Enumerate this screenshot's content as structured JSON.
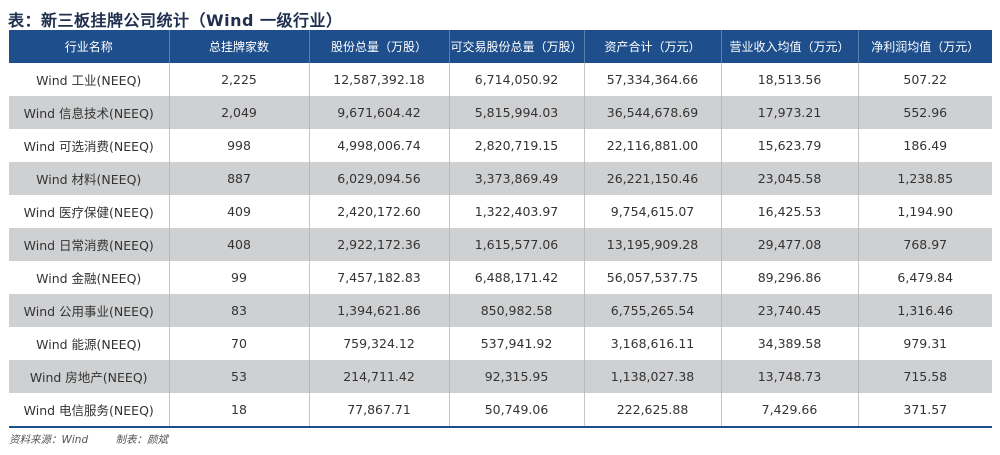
{
  "title": "表：新三板挂牌公司统计（Wind 一级行业）",
  "table": {
    "headers": [
      "行业名称",
      "总挂牌家数",
      "股份总量（万股）",
      "可交易股份总量（万股）",
      "资产合计（万元）",
      "营业收入均值（万元）",
      "净利润均值（万元）"
    ],
    "rows": [
      [
        "Wind 工业(NEEQ)",
        "2,225",
        "12,587,392.18",
        "6,714,050.92",
        "57,334,364.66",
        "18,513.56",
        "507.22"
      ],
      [
        "Wind 信息技术(NEEQ)",
        "2,049",
        "9,671,604.42",
        "5,815,994.03",
        "36,544,678.69",
        "17,973.21",
        "552.96"
      ],
      [
        "Wind 可选消费(NEEQ)",
        "998",
        "4,998,006.74",
        "2,820,719.15",
        "22,116,881.00",
        "15,623.79",
        "186.49"
      ],
      [
        "Wind 材料(NEEQ)",
        "887",
        "6,029,094.56",
        "3,373,869.49",
        "26,221,150.46",
        "23,045.58",
        "1,238.85"
      ],
      [
        "Wind 医疗保健(NEEQ)",
        "409",
        "2,420,172.60",
        "1,322,403.97",
        "9,754,615.07",
        "16,425.53",
        "1,194.90"
      ],
      [
        "Wind 日常消费(NEEQ)",
        "408",
        "2,922,172.36",
        "1,615,577.06",
        "13,195,909.28",
        "29,477.08",
        "768.97"
      ],
      [
        "Wind 金融(NEEQ)",
        "99",
        "7,457,182.83",
        "6,488,171.42",
        "56,057,537.75",
        "89,296.86",
        "6,479.84"
      ],
      [
        "Wind 公用事业(NEEQ)",
        "83",
        "1,394,621.86",
        "850,982.58",
        "6,755,265.54",
        "23,740.45",
        "1,316.46"
      ],
      [
        "Wind 能源(NEEQ)",
        "70",
        "759,324.12",
        "537,941.92",
        "3,168,616.11",
        "34,389.58",
        "979.31"
      ],
      [
        "Wind 房地产(NEEQ)",
        "53",
        "214,711.42",
        "92,315.95",
        "1,138,027.38",
        "13,748.73",
        "715.58"
      ],
      [
        "Wind 电信服务(NEEQ)",
        "18",
        "77,867.71",
        "50,749.06",
        "222,625.88",
        "7,429.66",
        "371.57"
      ]
    ]
  },
  "footer": {
    "source": "资料来源：Wind",
    "author": "制表：颜斌"
  }
}
